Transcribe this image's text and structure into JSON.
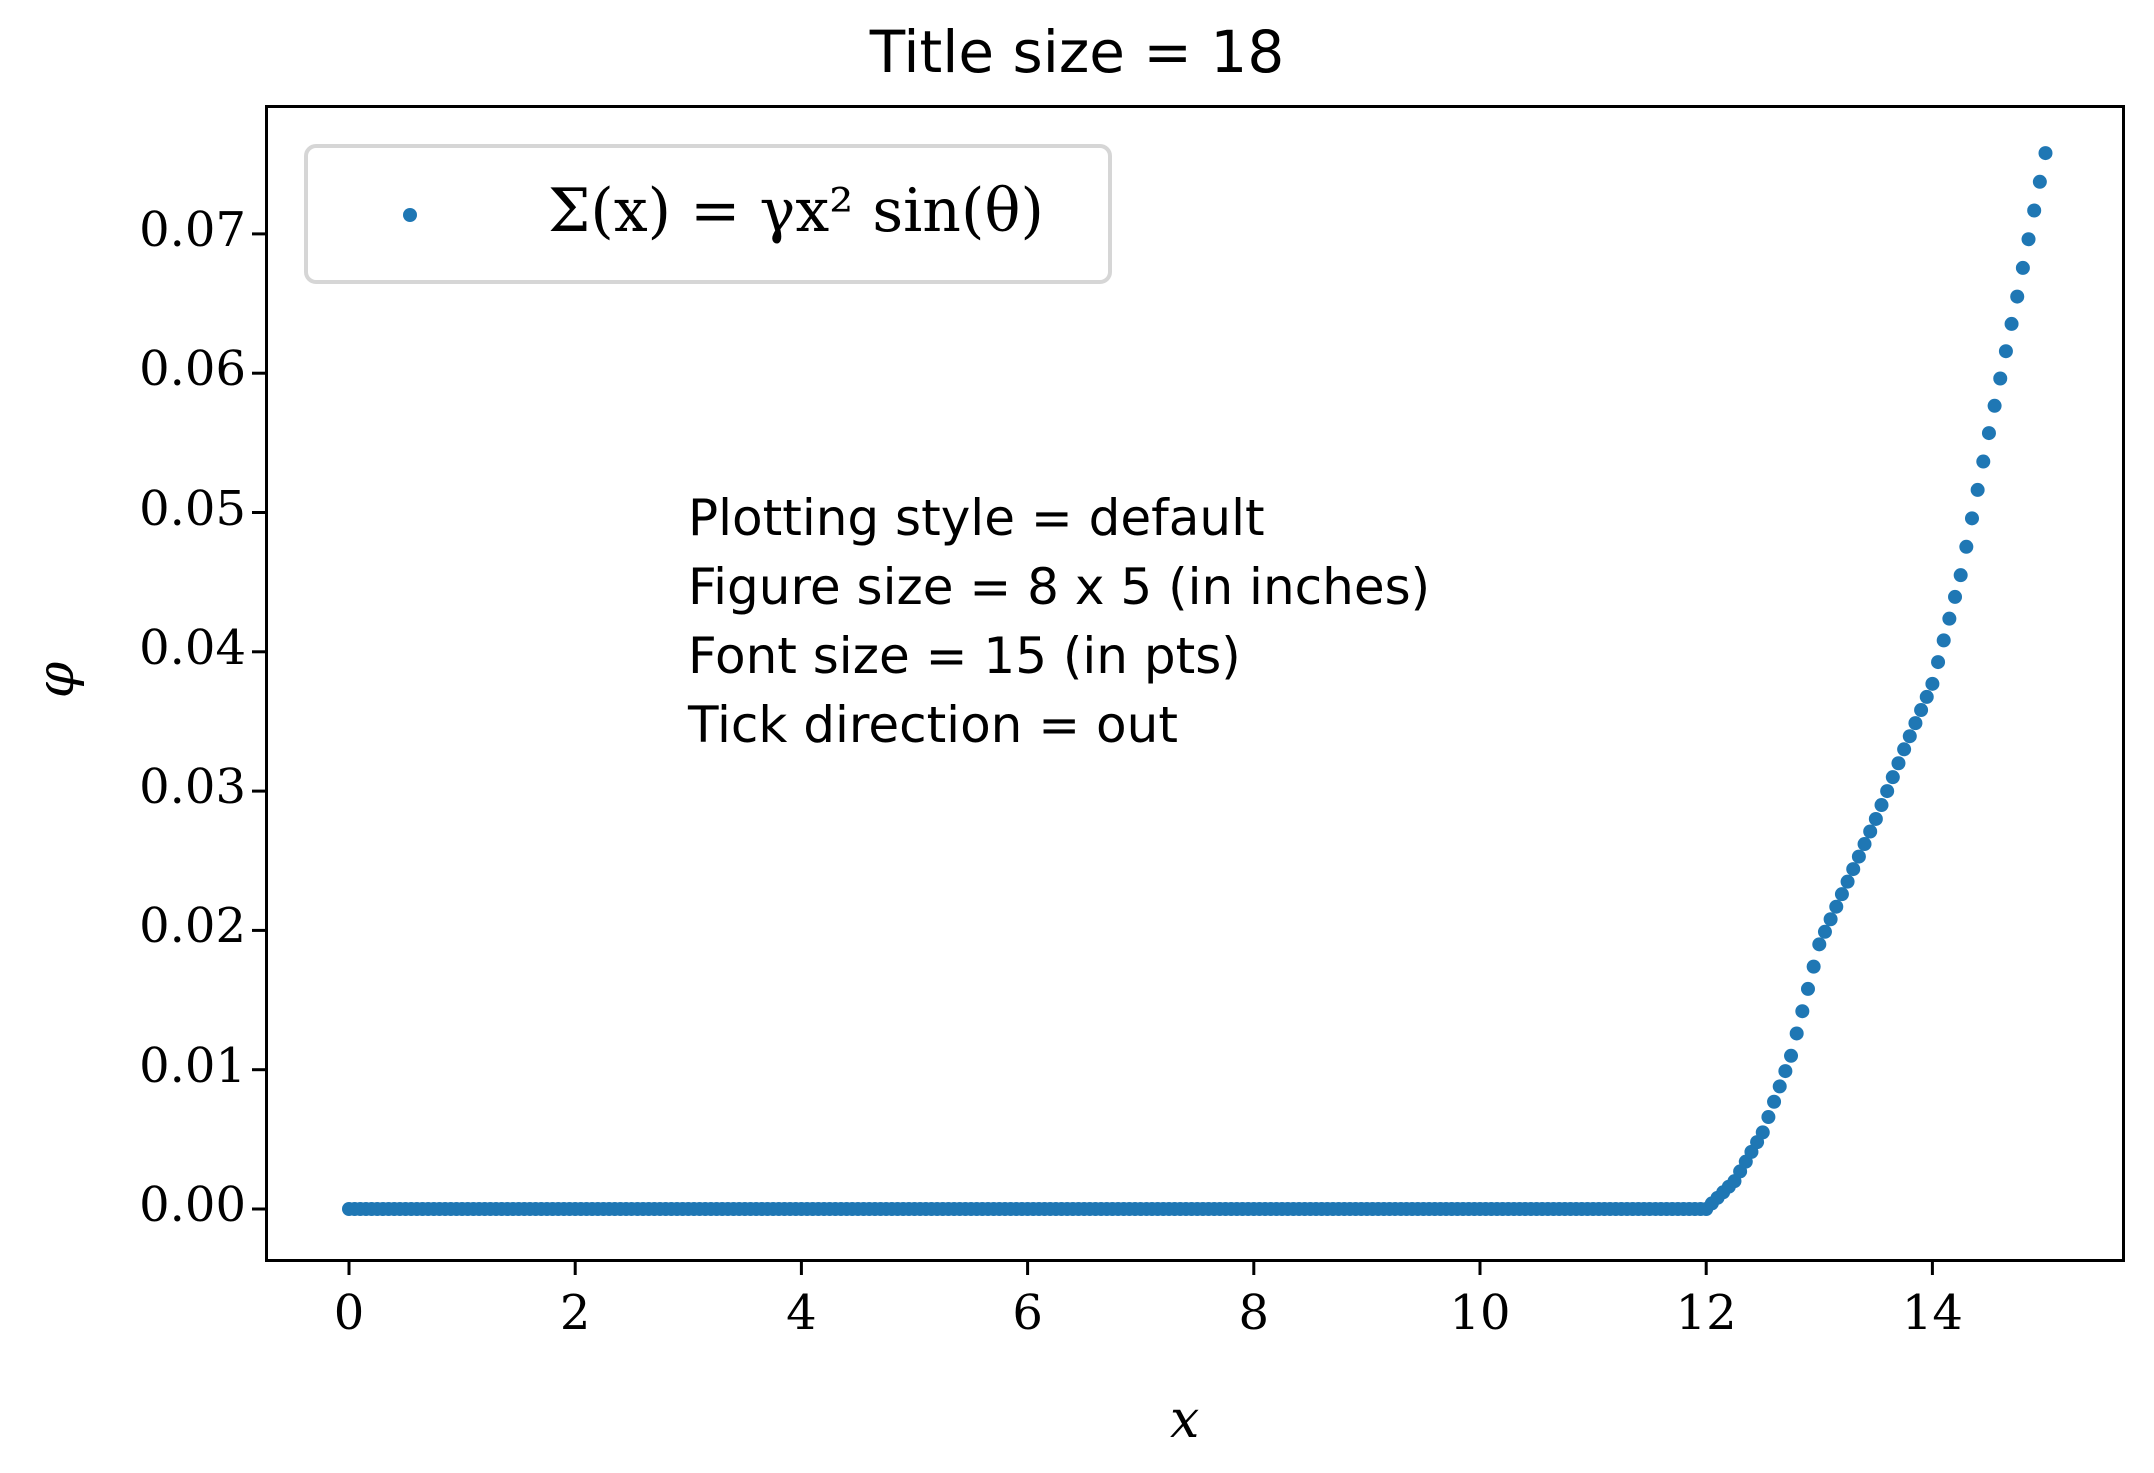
{
  "title": "Title size = 18",
  "legend": {
    "label": "Σ(x) = γx² sin(θ)",
    "marker_color": "#1f77b4"
  },
  "annotation": {
    "lines": [
      "Plotting style = default",
      "Figure size = 8 x 5 (in inches)",
      "Font size = 15 (in pts)",
      "Tick direction = out"
    ]
  },
  "axes": {
    "xlabel": "x",
    "ylabel": "φ",
    "xticks": [
      "0",
      "2",
      "4",
      "6",
      "8",
      "10",
      "12",
      "14"
    ],
    "yticks": [
      "0.00",
      "0.01",
      "0.02",
      "0.03",
      "0.04",
      "0.05",
      "0.06",
      "0.07"
    ]
  },
  "chart_data": {
    "type": "scatter",
    "title": "Title size = 18",
    "xlabel": "x",
    "ylabel": "φ",
    "xlim": [
      -0.75,
      15.75
    ],
    "ylim": [
      -0.0036,
      0.0795
    ],
    "xticks": [
      0,
      2,
      4,
      6,
      8,
      10,
      12,
      14
    ],
    "yticks": [
      0.0,
      0.01,
      0.02,
      0.03,
      0.04,
      0.05,
      0.06,
      0.07
    ],
    "grid": false,
    "legend_position": "upper left",
    "marker_step": 0.05,
    "series": [
      {
        "name": "Σ(x) = γx² sin(θ)",
        "color": "#1f77b4",
        "marker": "dot",
        "x": [
          0,
          2,
          4,
          6,
          8,
          10,
          12,
          12.25,
          12.5,
          12.75,
          13,
          13.25,
          13.5,
          13.75,
          14,
          14.25,
          14.5,
          14.75,
          15
        ],
        "y": [
          0,
          0,
          0,
          0,
          0,
          0,
          0,
          0.002,
          0.0055,
          0.011,
          0.019,
          0.0235,
          0.028,
          0.033,
          0.0377,
          0.0455,
          0.0557,
          0.0655,
          0.0758
        ]
      }
    ],
    "annotations": [
      "Plotting style = default",
      "Figure size = 8 x 5 (in inches)",
      "Font size = 15 (in pts)",
      "Tick direction = out"
    ]
  }
}
